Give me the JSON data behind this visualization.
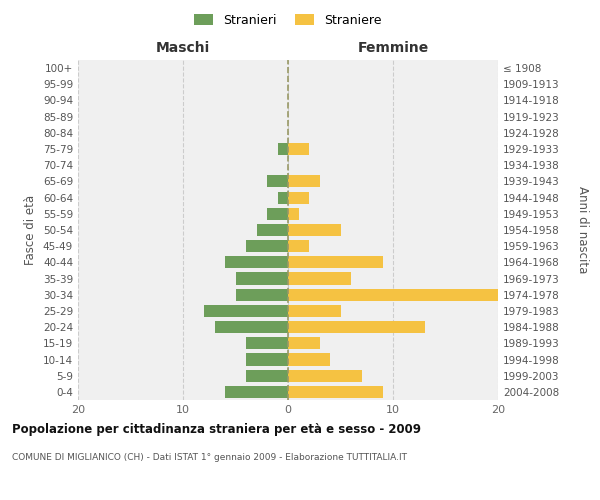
{
  "age_groups": [
    "0-4",
    "5-9",
    "10-14",
    "15-19",
    "20-24",
    "25-29",
    "30-34",
    "35-39",
    "40-44",
    "45-49",
    "50-54",
    "55-59",
    "60-64",
    "65-69",
    "70-74",
    "75-79",
    "80-84",
    "85-89",
    "90-94",
    "95-99",
    "100+"
  ],
  "birth_years": [
    "2004-2008",
    "1999-2003",
    "1994-1998",
    "1989-1993",
    "1984-1988",
    "1979-1983",
    "1974-1978",
    "1969-1973",
    "1964-1968",
    "1959-1963",
    "1954-1958",
    "1949-1953",
    "1944-1948",
    "1939-1943",
    "1934-1938",
    "1929-1933",
    "1924-1928",
    "1919-1923",
    "1914-1918",
    "1909-1913",
    "≤ 1908"
  ],
  "males": [
    6,
    4,
    4,
    4,
    7,
    8,
    5,
    5,
    6,
    4,
    3,
    2,
    1,
    2,
    0,
    1,
    0,
    0,
    0,
    0,
    0
  ],
  "females": [
    9,
    7,
    4,
    3,
    13,
    5,
    20,
    6,
    9,
    2,
    5,
    1,
    2,
    3,
    0,
    2,
    0,
    0,
    0,
    0,
    0
  ],
  "male_color": "#6d9e5a",
  "female_color": "#f5c242",
  "background_color": "#f0f0f0",
  "grid_color": "#cccccc",
  "center_line_color": "#999966",
  "title": "Popolazione per cittadinanza straniera per età e sesso - 2009",
  "subtitle": "COMUNE DI MIGLIANICO (CH) - Dati ISTAT 1° gennaio 2009 - Elaborazione TUTTITALIA.IT",
  "header_left": "Maschi",
  "header_right": "Femmine",
  "ylabel_left": "Fasce di età",
  "ylabel_right": "Anni di nascita",
  "legend_male": "Stranieri",
  "legend_female": "Straniere",
  "xlim": 20,
  "bar_height": 0.75
}
